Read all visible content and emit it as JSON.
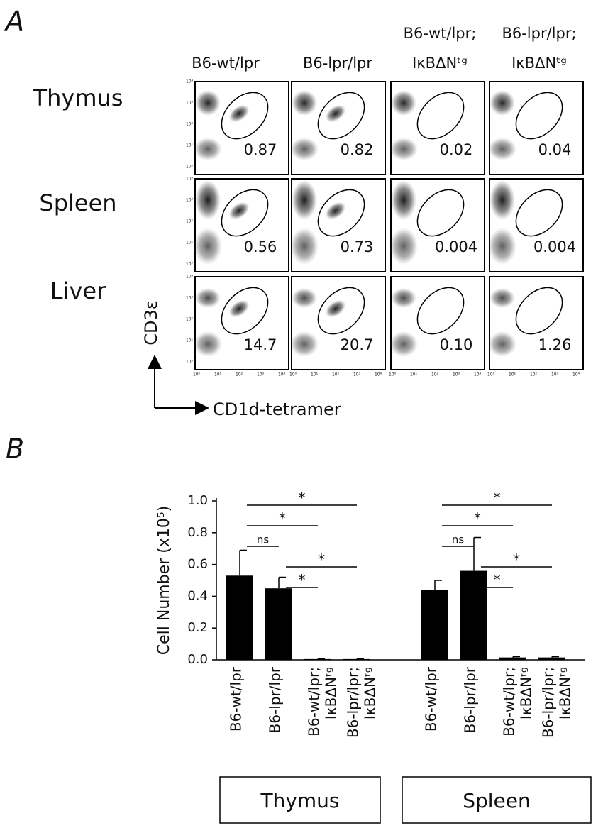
{
  "panel_a": {
    "label": "A",
    "columns": [
      [
        "B6-wt/lpr"
      ],
      [
        "B6-lpr/lpr"
      ],
      [
        "B6-wt/lpr;",
        "IκBΔNᵗᵍ"
      ],
      [
        "B6-lpr/lpr;",
        "IκBΔNᵗᵍ"
      ]
    ],
    "rows": [
      {
        "label": "Thymus",
        "values": [
          0.87,
          0.82,
          0.02,
          0.04
        ]
      },
      {
        "label": "Spleen",
        "values": [
          0.56,
          0.73,
          0.004,
          0.004
        ]
      },
      {
        "label": "Liver",
        "values": [
          14.7,
          20.7,
          0.1,
          1.26
        ],
        "value_labels": [
          "14.7",
          "20.7",
          "0.10",
          "1.26"
        ]
      }
    ],
    "y_axis_label": "CD3ε",
    "x_axis_label": "CD1d-tetramer",
    "axis_ticks": [
      "10⁰",
      "10¹",
      "10²",
      "10³",
      "10⁴"
    ]
  },
  "chart_data": {
    "type": "bar",
    "panel_label": "B",
    "y_label": "Cell Number (x10⁵)",
    "categories": [
      [
        "B6-wt/lpr"
      ],
      [
        "B6-lpr/lpr"
      ],
      [
        "B6-wt/lpr;",
        "IκBΔNᵗᵍ"
      ],
      [
        "B6-lpr/lpr;",
        "IκBΔNᵗᵍ"
      ]
    ],
    "groups": [
      {
        "name": "Thymus",
        "values": [
          0.53,
          0.45,
          0.005,
          0.005
        ],
        "errors": [
          0.16,
          0.07,
          0.002,
          0.002
        ],
        "comparisons": [
          {
            "pair": [
              0,
              3
            ],
            "label": "*"
          },
          {
            "pair": [
              0,
              2
            ],
            "label": "*"
          },
          {
            "pair": [
              0,
              1
            ],
            "label": "ns"
          },
          {
            "pair": [
              1,
              3
            ],
            "label": "*"
          },
          {
            "pair": [
              1,
              2
            ],
            "label": "*"
          }
        ]
      },
      {
        "name": "Spleen",
        "values": [
          0.44,
          0.56,
          0.015,
          0.015
        ],
        "errors": [
          0.06,
          0.21,
          0.005,
          0.005
        ],
        "comparisons": [
          {
            "pair": [
              0,
              3
            ],
            "label": "*"
          },
          {
            "pair": [
              0,
              2
            ],
            "label": "*"
          },
          {
            "pair": [
              0,
              1
            ],
            "label": "ns"
          },
          {
            "pair": [
              1,
              3
            ],
            "label": "*"
          },
          {
            "pair": [
              1,
              2
            ],
            "label": "*"
          }
        ]
      }
    ],
    "color": "#000000",
    "ylim": [
      0,
      1
    ],
    "yticks": [
      {
        "value": 0,
        "label": "0.0"
      },
      0.2,
      0.4,
      0.6,
      0.8,
      {
        "value": 1,
        "label": "1.0"
      }
    ]
  }
}
